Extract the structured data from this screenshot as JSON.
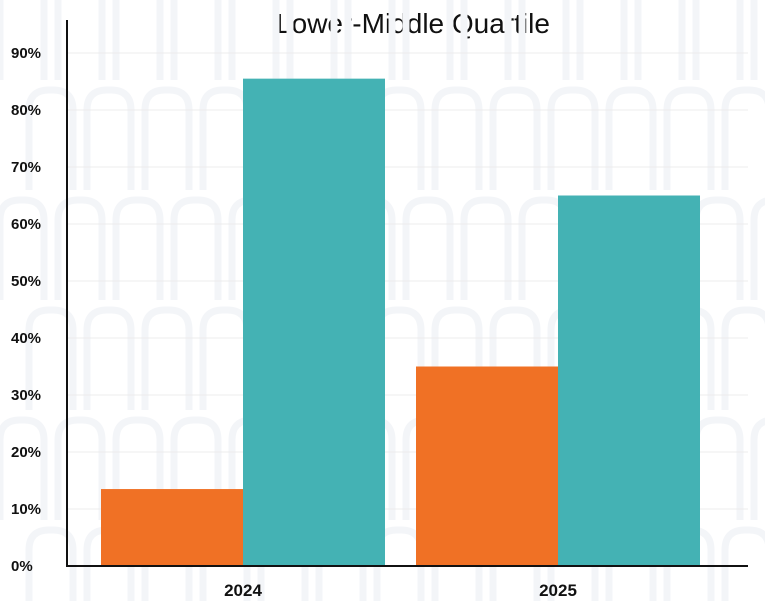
{
  "chart_data": {
    "type": "bar",
    "title": "Lower-Middle Quartile",
    "categories": [
      "2024",
      "2025"
    ],
    "series": [
      {
        "values": [
          13.5,
          35
        ],
        "color": "#f07125"
      },
      {
        "values": [
          85.5,
          65
        ],
        "color": "#44b2b4"
      }
    ],
    "ylim": [
      0,
      90
    ],
    "yticks": [
      0,
      10,
      20,
      30,
      40,
      50,
      60,
      70,
      80,
      90
    ],
    "ytick_suffix": "%",
    "grid": true,
    "legend": "none",
    "axis_color": "#111111",
    "grid_color": "#ececec"
  }
}
